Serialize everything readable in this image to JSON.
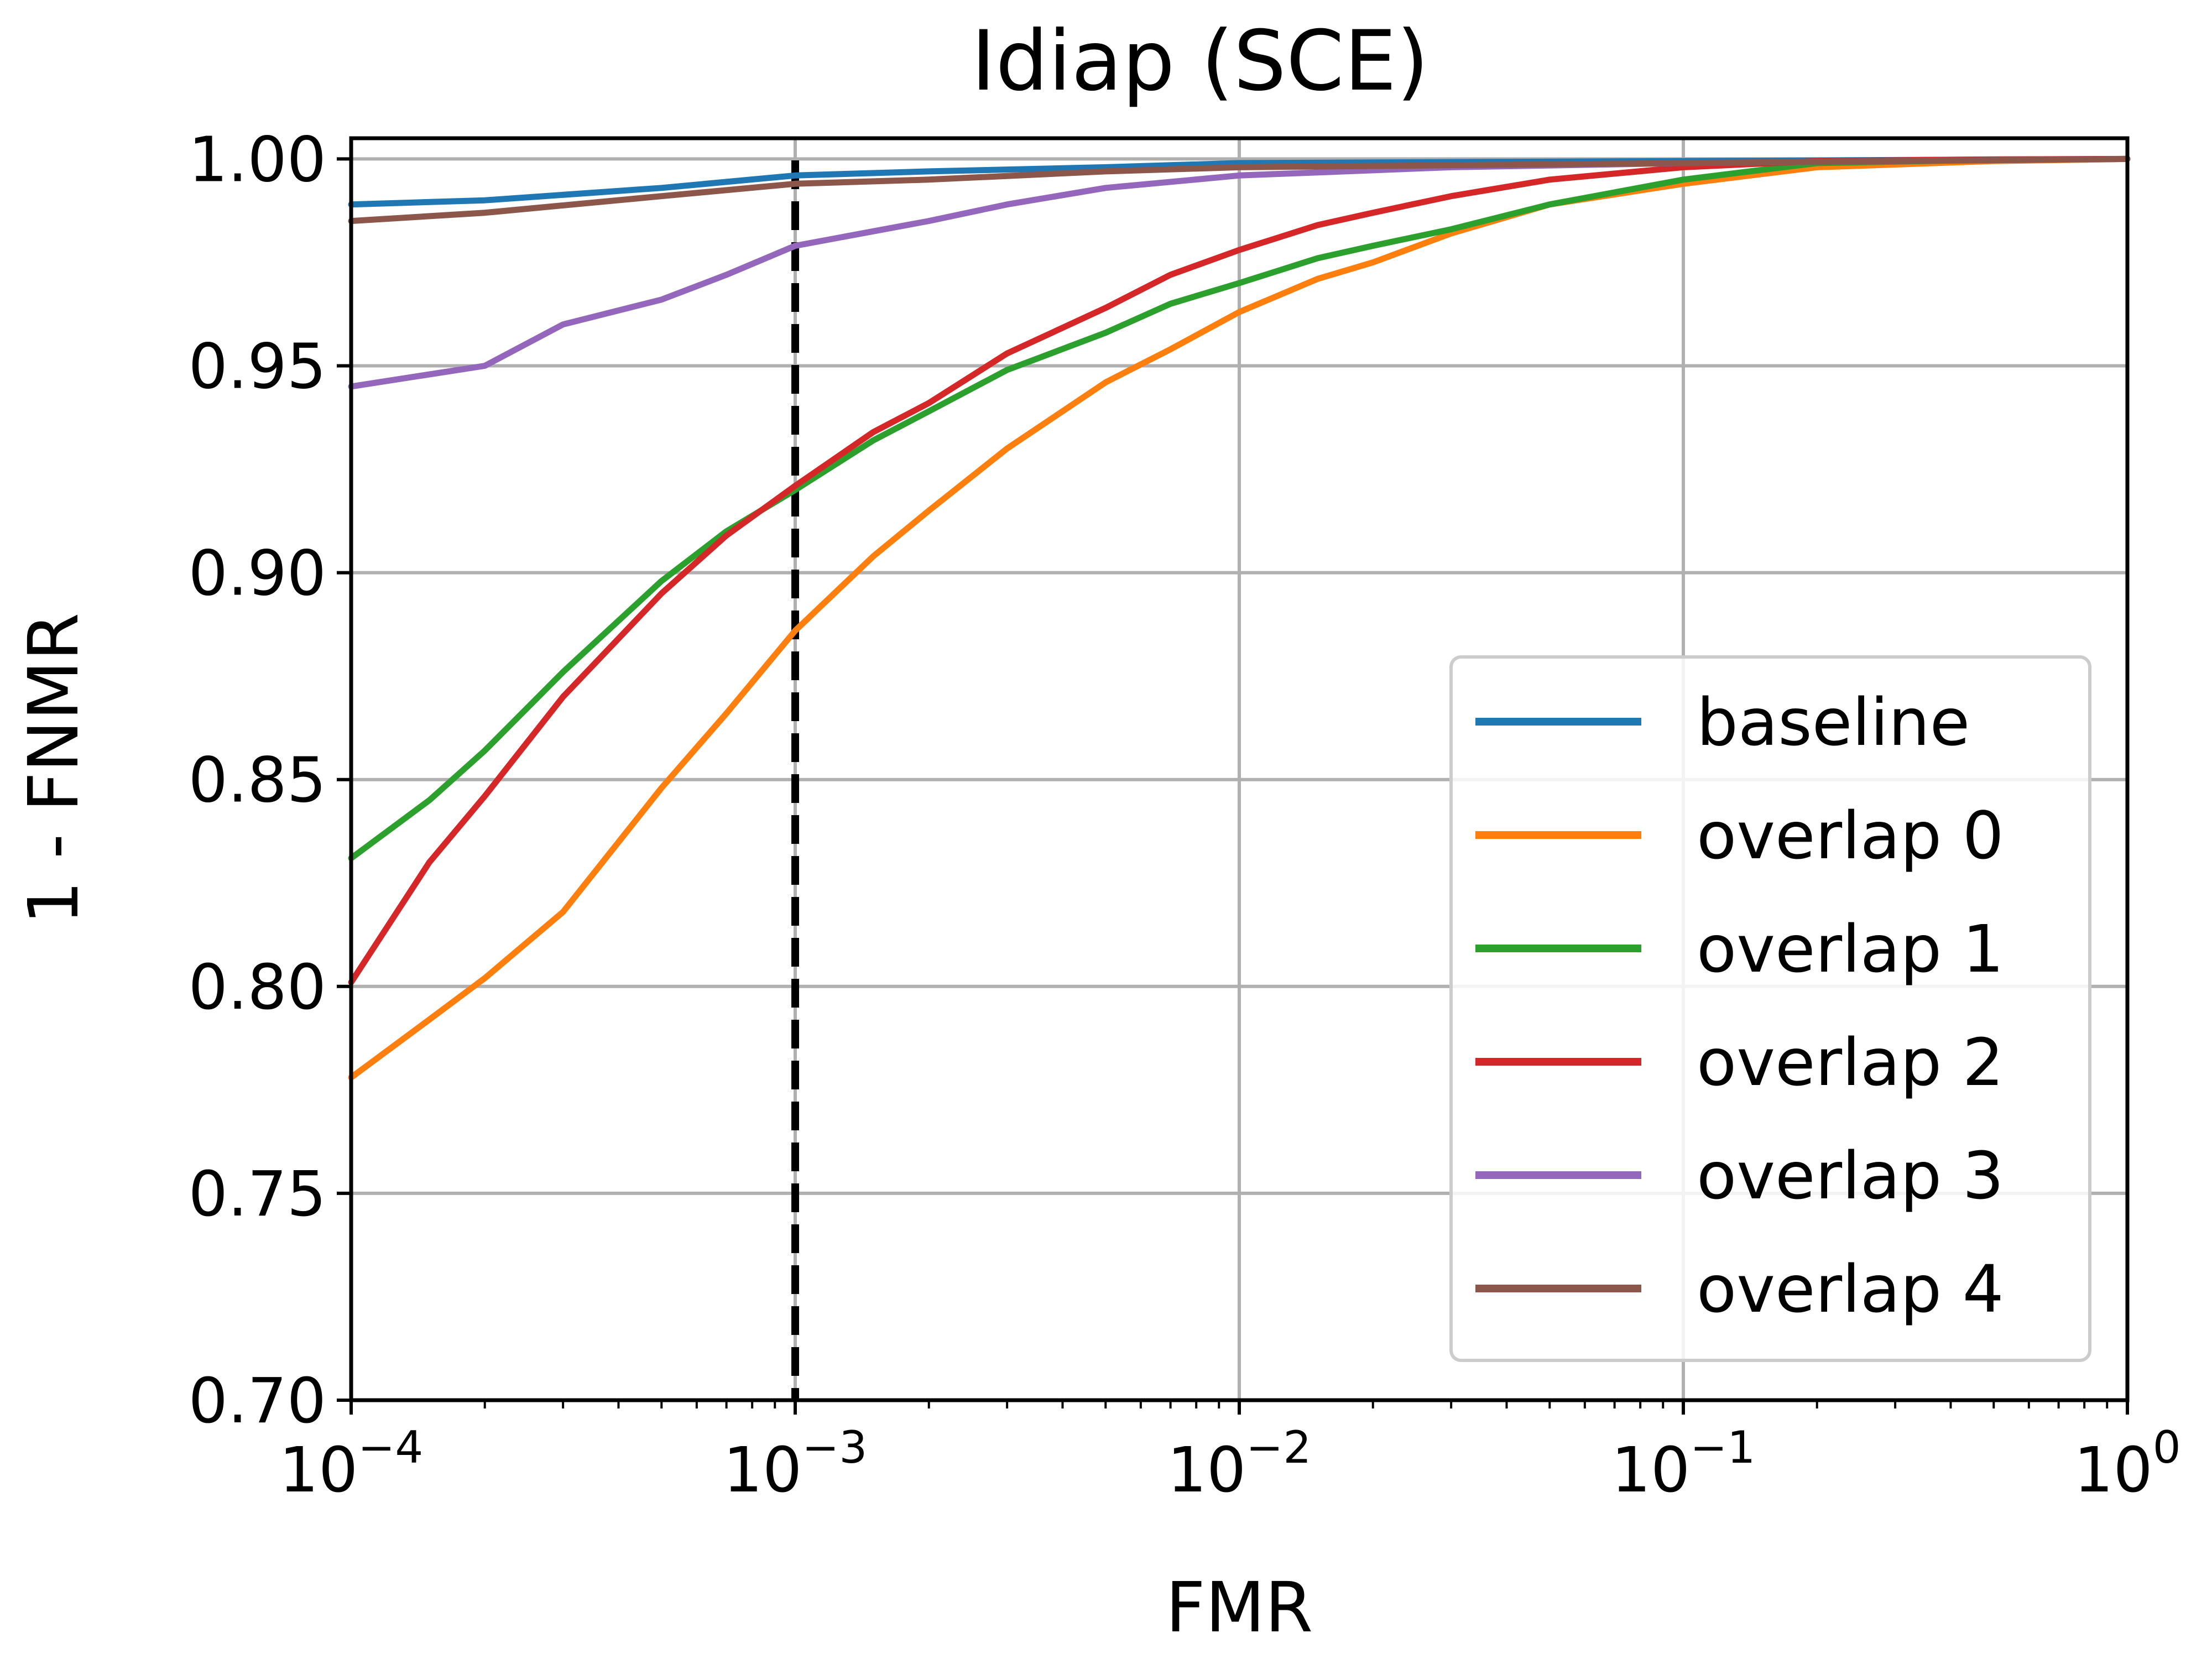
{
  "chart_data": {
    "type": "line",
    "title": "Idiap (SCE)",
    "xlabel": "FMR",
    "ylabel": "1 - FNMR",
    "xscale": "log",
    "xlim": [
      0.0001,
      1
    ],
    "ylim": [
      0.7,
      1.005
    ],
    "grid": true,
    "x_ticks": [
      {
        "value": 0.0001,
        "base": "10",
        "exp": "−4"
      },
      {
        "value": 0.001,
        "base": "10",
        "exp": "−3"
      },
      {
        "value": 0.01,
        "base": "10",
        "exp": "−2"
      },
      {
        "value": 0.1,
        "base": "10",
        "exp": "−1"
      },
      {
        "value": 1,
        "base": "10",
        "exp": "0"
      }
    ],
    "y_ticks": [
      {
        "value": 0.7,
        "label": "0.70"
      },
      {
        "value": 0.75,
        "label": "0.75"
      },
      {
        "value": 0.8,
        "label": "0.80"
      },
      {
        "value": 0.85,
        "label": "0.85"
      },
      {
        "value": 0.9,
        "label": "0.90"
      },
      {
        "value": 0.95,
        "label": "0.95"
      },
      {
        "value": 1.0,
        "label": "1.00"
      }
    ],
    "reference_line": {
      "x": 0.001,
      "style": "dashed",
      "color": "#000000"
    },
    "legend_position": "lower-right",
    "series": [
      {
        "name": "baseline",
        "color": "#1f77b4",
        "x": [
          0.0001,
          0.0002,
          0.0005,
          0.001,
          0.002,
          0.005,
          0.01,
          0.1,
          1
        ],
        "y": [
          0.989,
          0.99,
          0.993,
          0.996,
          0.997,
          0.998,
          0.999,
          0.9995,
          1.0
        ]
      },
      {
        "name": "overlap 0",
        "color": "#ff7f0e",
        "x": [
          0.0001,
          0.00015,
          0.0002,
          0.0003,
          0.0005,
          0.0007,
          0.001,
          0.0015,
          0.002,
          0.003,
          0.005,
          0.007,
          0.01,
          0.015,
          0.02,
          0.03,
          0.05,
          0.1,
          0.2,
          0.5,
          1
        ],
        "y": [
          0.778,
          0.792,
          0.802,
          0.818,
          0.848,
          0.866,
          0.886,
          0.904,
          0.915,
          0.93,
          0.946,
          0.954,
          0.963,
          0.971,
          0.975,
          0.982,
          0.989,
          0.994,
          0.998,
          0.9995,
          1.0
        ]
      },
      {
        "name": "overlap 1",
        "color": "#2ca02c",
        "x": [
          0.0001,
          0.00015,
          0.0002,
          0.0003,
          0.0005,
          0.0007,
          0.001,
          0.0015,
          0.002,
          0.003,
          0.005,
          0.007,
          0.01,
          0.015,
          0.02,
          0.03,
          0.05,
          0.1,
          0.2,
          0.5,
          1
        ],
        "y": [
          0.831,
          0.845,
          0.857,
          0.876,
          0.898,
          0.91,
          0.92,
          0.932,
          0.939,
          0.949,
          0.958,
          0.965,
          0.97,
          0.976,
          0.979,
          0.983,
          0.989,
          0.995,
          0.999,
          0.9998,
          1.0
        ]
      },
      {
        "name": "overlap 2",
        "color": "#d62728",
        "x": [
          0.0001,
          0.00015,
          0.0002,
          0.0003,
          0.0005,
          0.0007,
          0.001,
          0.0015,
          0.002,
          0.003,
          0.005,
          0.007,
          0.01,
          0.015,
          0.02,
          0.03,
          0.05,
          0.1,
          0.2,
          0.5,
          1
        ],
        "y": [
          0.801,
          0.83,
          0.846,
          0.87,
          0.895,
          0.909,
          0.921,
          0.934,
          0.941,
          0.953,
          0.964,
          0.972,
          0.978,
          0.984,
          0.987,
          0.991,
          0.995,
          0.998,
          0.9995,
          0.9999,
          1.0
        ]
      },
      {
        "name": "overlap 3",
        "color": "#9467bd",
        "x": [
          0.0001,
          0.0002,
          0.0003,
          0.0005,
          0.0007,
          0.001,
          0.002,
          0.003,
          0.005,
          0.01,
          0.03,
          0.1,
          1
        ],
        "y": [
          0.945,
          0.95,
          0.96,
          0.966,
          0.972,
          0.979,
          0.985,
          0.989,
          0.993,
          0.996,
          0.998,
          0.999,
          1.0
        ]
      },
      {
        "name": "overlap 4",
        "color": "#8c564b",
        "x": [
          0.0001,
          0.0002,
          0.0005,
          0.001,
          0.002,
          0.005,
          0.01,
          0.1,
          1
        ],
        "y": [
          0.985,
          0.987,
          0.991,
          0.994,
          0.995,
          0.997,
          0.998,
          0.999,
          1.0
        ]
      }
    ]
  }
}
